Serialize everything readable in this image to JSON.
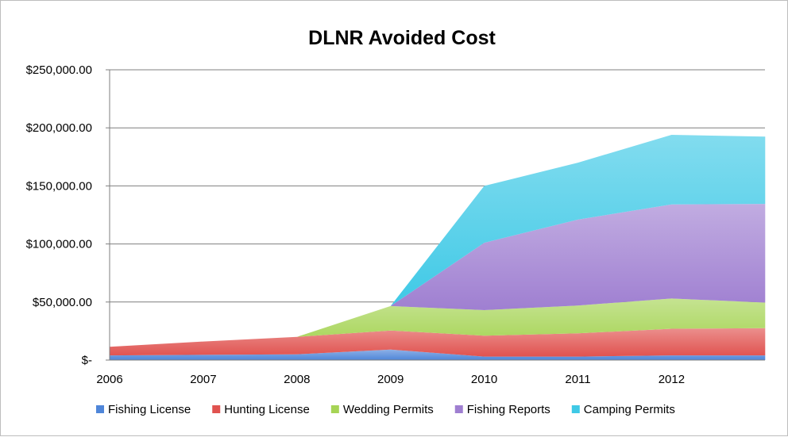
{
  "chart_data": {
    "type": "area",
    "stacked": true,
    "title": "DLNR Avoided Cost",
    "xlabel": "",
    "ylabel": "",
    "x": [
      "2006",
      "2007",
      "2008",
      "2009",
      "2010",
      "2011",
      "2012",
      ""
    ],
    "x_tick_labels": [
      "2006",
      "2007",
      "2008",
      "2009",
      "2010",
      "2011",
      "2012"
    ],
    "ylim": [
      0,
      250000
    ],
    "y_ticks": [
      0,
      50000,
      100000,
      150000,
      200000,
      250000
    ],
    "y_tick_labels": [
      "$-",
      "$50,000.00",
      "$100,000.00",
      "$150,000.00",
      "$200,000.00",
      "$250,000.00"
    ],
    "grid": true,
    "legend_position": "bottom",
    "series": [
      {
        "name": "Fishing License",
        "color": "#4f86d9",
        "values": [
          4000,
          4500,
          5000,
          9000,
          3000,
          3000,
          4000,
          4000
        ]
      },
      {
        "name": "Hunting License",
        "color": "#e0524f",
        "values": [
          7500,
          11500,
          15000,
          16500,
          18000,
          20000,
          23000,
          23500
        ]
      },
      {
        "name": "Wedding Permits",
        "color": "#a6d455",
        "values": [
          0,
          0,
          0,
          21000,
          22000,
          24000,
          26000,
          22000
        ]
      },
      {
        "name": "Fishing Reports",
        "color": "#9f7fd1",
        "values": [
          null,
          null,
          null,
          0,
          58000,
          74000,
          81000,
          85000
        ]
      },
      {
        "name": "Camping Permits",
        "color": "#3fc9e6",
        "values": [
          null,
          null,
          null,
          0,
          49000,
          49000,
          60000,
          58000
        ]
      }
    ]
  }
}
